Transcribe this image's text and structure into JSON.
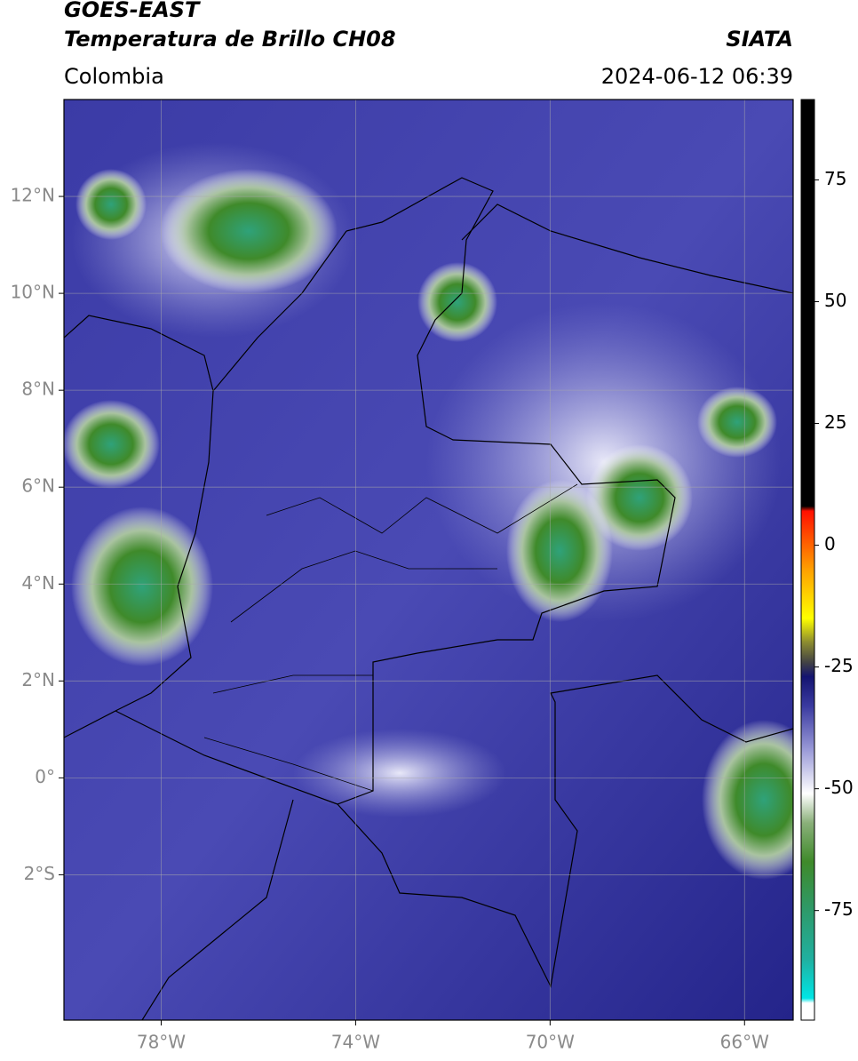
{
  "header": {
    "title_line1": "GOES-EAST",
    "title_line2": "Temperatura de Brillo CH08",
    "region": "Colombia",
    "source": "SIATA",
    "datetime": "2024-06-12 06:39"
  },
  "map": {
    "xlim": [
      -80,
      -65
    ],
    "ylim": [
      -5,
      14
    ],
    "xticks": [
      {
        "value": -78,
        "label": "78°W"
      },
      {
        "value": -74,
        "label": "74°W"
      },
      {
        "value": -70,
        "label": "70°W"
      },
      {
        "value": -66,
        "label": "66°W"
      }
    ],
    "yticks": [
      {
        "value": 12,
        "label": "12°N"
      },
      {
        "value": 10,
        "label": "10°N"
      },
      {
        "value": 8,
        "label": "8°N"
      },
      {
        "value": 6,
        "label": "6°N"
      },
      {
        "value": 4,
        "label": "4°N"
      },
      {
        "value": 2,
        "label": "2°N"
      },
      {
        "value": 0,
        "label": "0°"
      },
      {
        "value": -2,
        "label": "2°S"
      }
    ],
    "grid": true
  },
  "colorbar": {
    "lim": [
      -97.5,
      91.5
    ],
    "ticks": [
      75,
      50,
      25,
      0,
      -25,
      -50,
      -75
    ],
    "stops": [
      {
        "value": -97.5,
        "color": "#ffffff"
      },
      {
        "value": -94,
        "color": "#ffffff"
      },
      {
        "value": -93,
        "color": "#00e5e5"
      },
      {
        "value": -85,
        "color": "#20b0a0"
      },
      {
        "value": -75,
        "color": "#2e9a6a"
      },
      {
        "value": -65,
        "color": "#3f8a2a"
      },
      {
        "value": -57,
        "color": "#8ab07a"
      },
      {
        "value": -51,
        "color": "#ffffff"
      },
      {
        "value": -42,
        "color": "#9a9ad8"
      },
      {
        "value": -33,
        "color": "#3a3aa0"
      },
      {
        "value": -27,
        "color": "#141470"
      },
      {
        "value": -24,
        "color": "#444444"
      },
      {
        "value": -20,
        "color": "#8a8a30"
      },
      {
        "value": -15,
        "color": "#ffff00"
      },
      {
        "value": -5,
        "color": "#ffa000"
      },
      {
        "value": 7,
        "color": "#ff1000"
      },
      {
        "value": 8,
        "color": "#000000"
      },
      {
        "value": 91.5,
        "color": "#000000"
      }
    ]
  }
}
